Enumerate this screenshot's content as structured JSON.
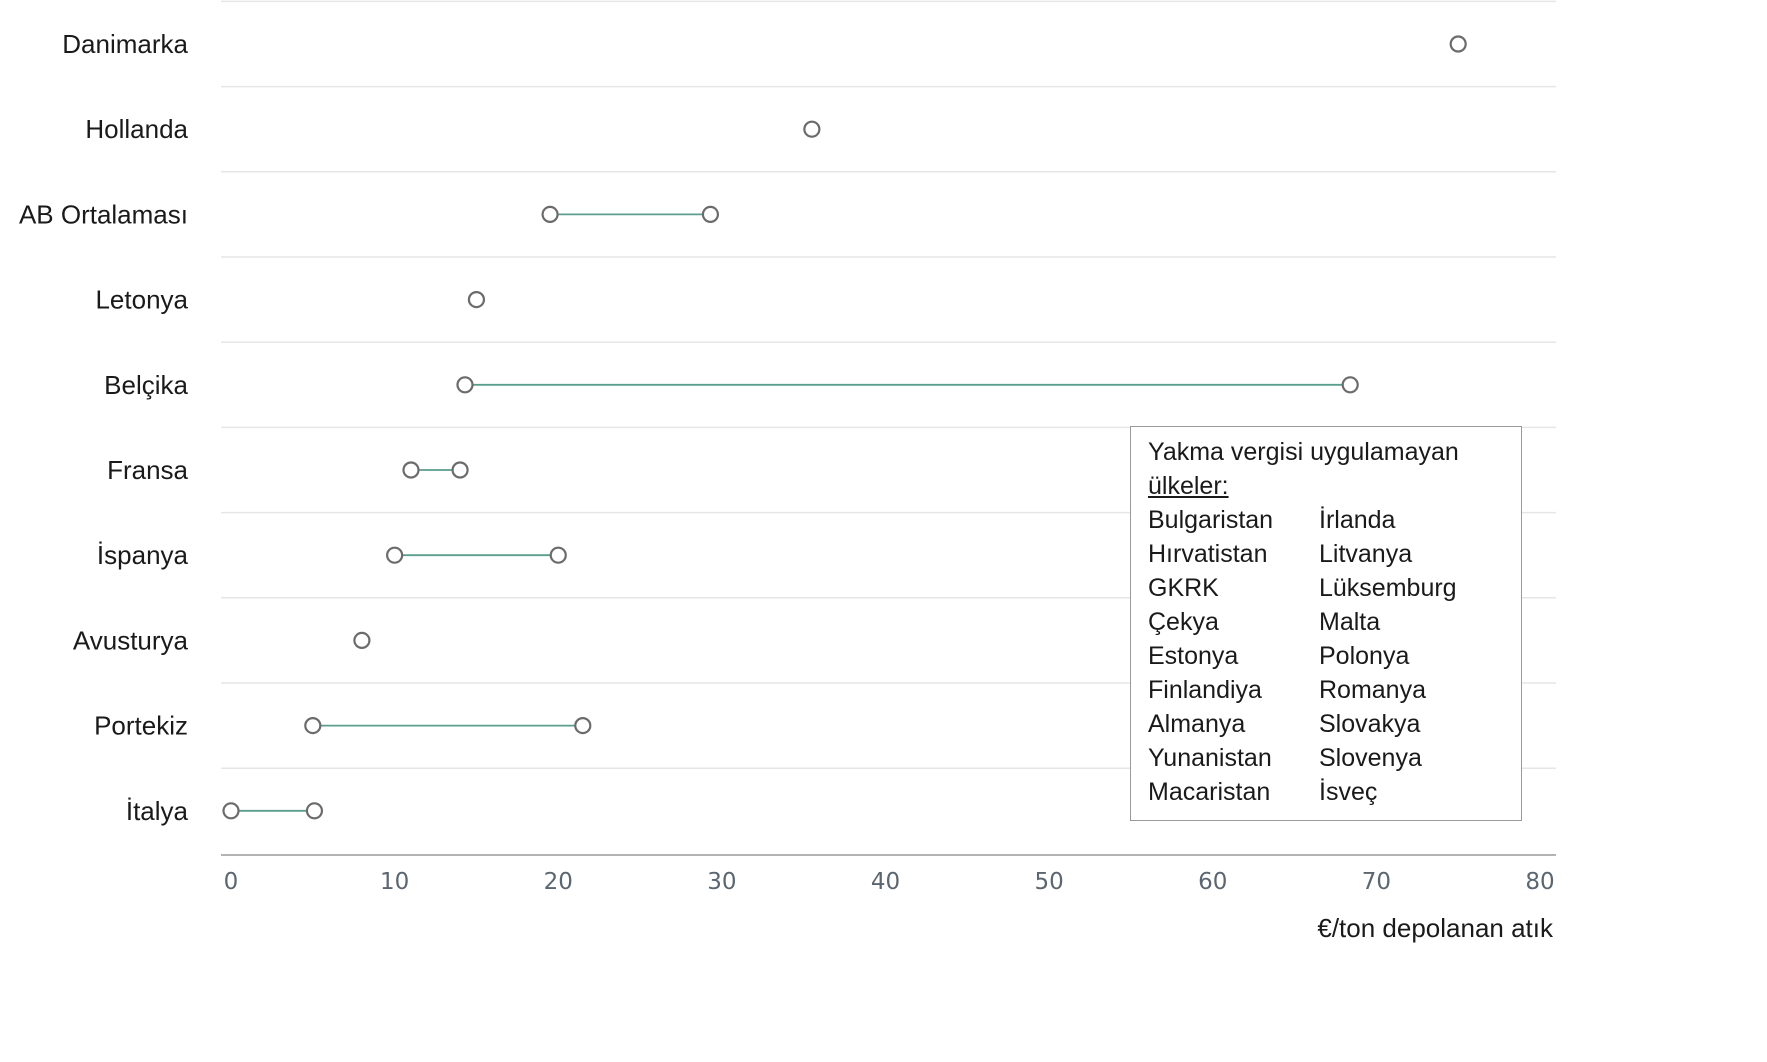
{
  "chart_data": {
    "type": "dumbbell",
    "xlabel": "€/ton depolanan atık",
    "xlim": [
      0,
      80
    ],
    "xticks": [
      0,
      10,
      20,
      30,
      40,
      50,
      60,
      70,
      80
    ],
    "grid": "horizontal",
    "categories": [
      "Danimarka",
      "Hollanda",
      "AB Ortalaması",
      "Letonya",
      "Belçika",
      "Fransa",
      "İspanya",
      "Avusturya",
      "Portekiz",
      "İtalya"
    ],
    "ranges": [
      [
        75,
        75
      ],
      [
        35.5,
        35.5
      ],
      [
        19.5,
        29.3
      ],
      [
        15,
        15
      ],
      [
        14.3,
        68.4
      ],
      [
        11,
        14
      ],
      [
        10,
        20
      ],
      [
        8,
        8
      ],
      [
        5,
        21.5
      ],
      [
        0,
        5.1
      ]
    ]
  },
  "legend": {
    "title": "Yakma vergisi uygulamayan",
    "subtitle": "ülkeler:",
    "column1": [
      "Bulgaristan",
      "Hırvatistan",
      "GKRK",
      "Çekya",
      "Estonya",
      "Finlandiya",
      "Almanya",
      "Yunanistan",
      "Macaristan"
    ],
    "column2": [
      "İrlanda",
      "Litvanya",
      "Lüksemburg",
      "Malta",
      "Polonya",
      "Romanya",
      "Slovakya",
      "Slovenya",
      "İsveç"
    ]
  },
  "colors": {
    "line": "#5a9e8e",
    "marker_stroke": "#6b6b6b",
    "grid": "#e6e6e6",
    "axis": "#9a9a9a"
  }
}
